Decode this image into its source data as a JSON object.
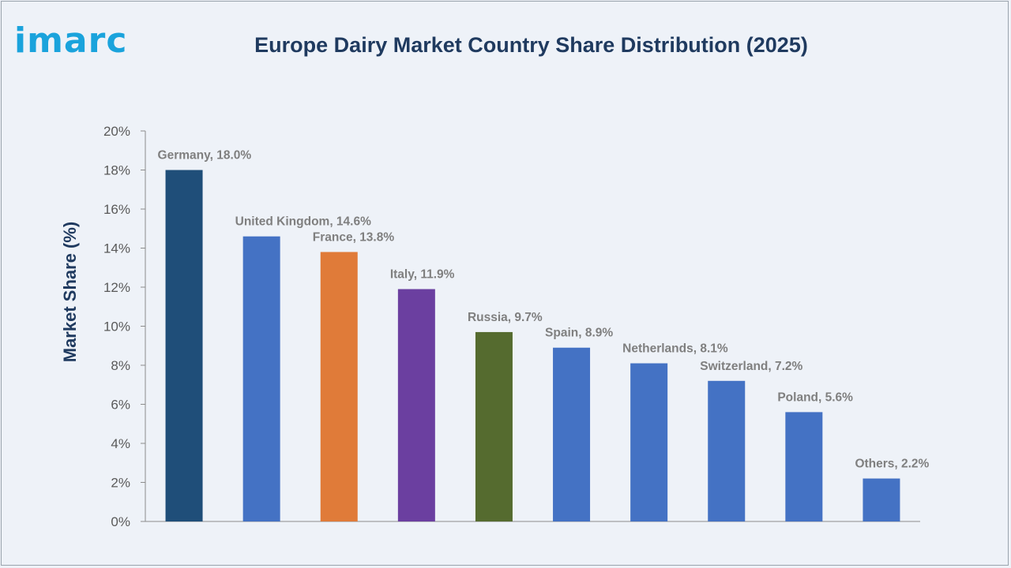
{
  "brand": {
    "logo_text": "imarc",
    "logo_color": "#1aa3dc"
  },
  "chart_data": {
    "type": "bar",
    "title": "Europe Dairy Market Country Share Distribution (2025)",
    "xlabel": "",
    "ylabel": "Market Share (%)",
    "ylim": [
      0,
      20
    ],
    "yticks": [
      "0%",
      "2%",
      "4%",
      "6%",
      "8%",
      "10%",
      "12%",
      "14%",
      "16%",
      "18%",
      "20%"
    ],
    "grid": false,
    "categories": [
      "Germany",
      "United Kingdom",
      "France",
      "Italy",
      "Russia",
      "Spain",
      "Netherlands",
      "Switzerland",
      "Poland",
      "Others"
    ],
    "values": [
      18.0,
      14.6,
      13.8,
      11.9,
      9.7,
      8.9,
      8.1,
      7.2,
      5.6,
      2.2
    ],
    "data_labels": [
      "Germany, 18.0%",
      "United Kingdom, 14.6%",
      "France, 13.8%",
      "Italy, 11.9%",
      "Russia, 9.7%",
      "Spain, 8.9%",
      "Netherlands, 8.1%",
      "Switzerland, 7.2%",
      "Poland, 5.6%",
      "Others, 2.2%"
    ],
    "colors": [
      "#1f4e79",
      "#4472c4",
      "#e07b39",
      "#6b3fa0",
      "#556b2f",
      "#4472c4",
      "#4472c4",
      "#4472c4",
      "#4472c4",
      "#4472c4"
    ]
  }
}
